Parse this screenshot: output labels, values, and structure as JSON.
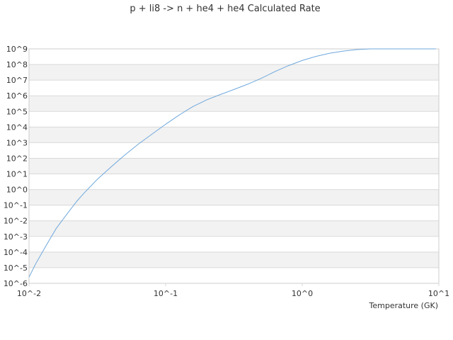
{
  "chart_data": {
    "type": "line",
    "title": "p + li8 -> n + he4 + he4 Calculated Rate",
    "xlabel": "Temperature (GK)",
    "ylabel": "",
    "x_scale": "log",
    "y_scale": "log",
    "xlim": [
      0.01,
      10
    ],
    "ylim": [
      1e-06,
      1000000000.0
    ],
    "grid": true,
    "legend": "none",
    "line_color": "#6fa8dc",
    "x_tick_labels": [
      "10^-2",
      "10^-1",
      "10^0",
      "10^1"
    ],
    "y_tick_labels": [
      "10^-6",
      "10^-5",
      "10^-4",
      "10^-3",
      "10^-2",
      "10^-1",
      "10^0",
      "10^1",
      "10^2",
      "10^3",
      "10^4",
      "10^5",
      "10^6",
      "10^7",
      "10^8",
      "10^9"
    ],
    "series": [
      {
        "x": [
          0.01,
          0.0112,
          0.0126,
          0.0141,
          0.0158,
          0.0178,
          0.02,
          0.0224,
          0.0251,
          0.0282,
          0.0316,
          0.0398,
          0.0501,
          0.0631,
          0.0794,
          0.1,
          0.126,
          0.158,
          0.2,
          0.251,
          0.316,
          0.398,
          0.501,
          0.631,
          0.794,
          1.0,
          1.26,
          1.58,
          2.0,
          2.51,
          3.16,
          3.98,
          5.01,
          6.31,
          7.94,
          9.5
        ],
        "y": [
          2.5e-06,
          1.8e-05,
          0.00011,
          0.0006,
          0.0032,
          0.013,
          0.05,
          0.18,
          0.55,
          1.6,
          4.5,
          28.0,
          160.0,
          800.0,
          3500.0,
          15000.0,
          60000.0,
          200000.0,
          550000.0,
          1200000.0,
          2500000.0,
          5500000.0,
          13000000.0,
          35000000.0,
          85000000.0,
          180000000.0,
          330000000.0,
          520000000.0,
          720000000.0,
          900000000.0,
          1050000000.0,
          1200000000.0,
          1300000000.0,
          1380000000.0,
          1420000000.0,
          1420000000.0
        ]
      }
    ]
  }
}
